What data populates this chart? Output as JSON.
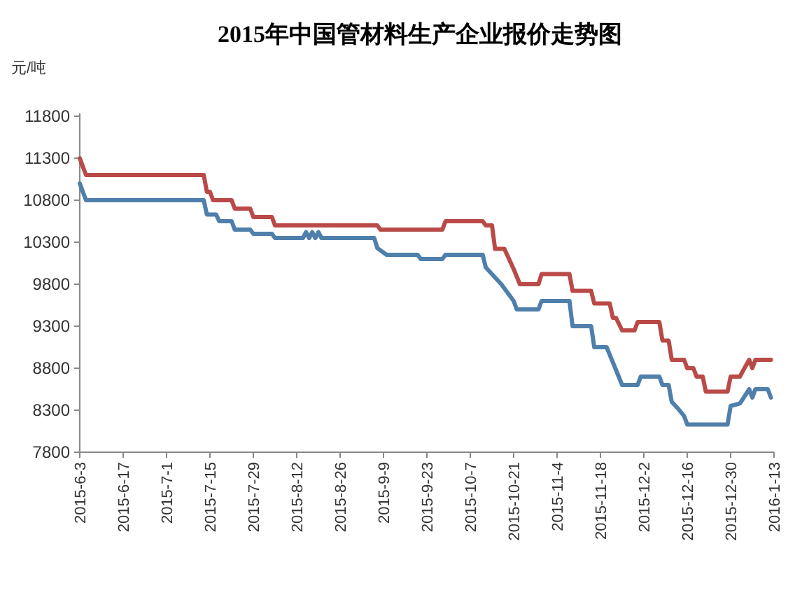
{
  "chart_data": {
    "type": "line",
    "title": "2015年中国管材料生产企业报价走势图",
    "ylabel": "元/吨",
    "xlim": [
      "2015-06-03",
      "2016-01-13"
    ],
    "xticks": [
      {
        "value": "2015-06-03",
        "label": "2015-6-3"
      },
      {
        "value": "2015-06-17",
        "label": "2015-6-17"
      },
      {
        "value": "2015-07-01",
        "label": "2015-7-1"
      },
      {
        "value": "2015-07-15",
        "label": "2015-7-15"
      },
      {
        "value": "2015-07-29",
        "label": "2015-7-29"
      },
      {
        "value": "2015-08-12",
        "label": "2015-8-12"
      },
      {
        "value": "2015-08-26",
        "label": "2015-8-26"
      },
      {
        "value": "2015-09-09",
        "label": "2015-9-9"
      },
      {
        "value": "2015-09-23",
        "label": "2015-9-23"
      },
      {
        "value": "2015-10-07",
        "label": "2015-10-7"
      },
      {
        "value": "2015-10-21",
        "label": "2015-10-21"
      },
      {
        "value": "2015-11-04",
        "label": "2015-11-4"
      },
      {
        "value": "2015-11-18",
        "label": "2015-11-18"
      },
      {
        "value": "2015-12-02",
        "label": "2015-12-2"
      },
      {
        "value": "2015-12-16",
        "label": "2015-12-16"
      },
      {
        "value": "2015-12-30",
        "label": "2015-12-30"
      },
      {
        "value": "2016-01-13",
        "label": "2016-1-13"
      }
    ],
    "ylim": [
      7800,
      11800
    ],
    "yticks": [
      7800,
      8300,
      8800,
      9300,
      9800,
      10300,
      10800,
      11300,
      11800
    ],
    "series": [
      {
        "color": "#4f7fab",
        "x": [
          "2015-06-03",
          "2015-06-05",
          "2015-07-13",
          "2015-07-14",
          "2015-07-17",
          "2015-07-18",
          "2015-07-22",
          "2015-07-23",
          "2015-07-28",
          "2015-07-29",
          "2015-08-04",
          "2015-08-05",
          "2015-08-14",
          "2015-08-15",
          "2015-08-16",
          "2015-08-17",
          "2015-08-18",
          "2015-08-19",
          "2015-08-20",
          "2015-09-06",
          "2015-09-07",
          "2015-09-10",
          "2015-09-20",
          "2015-09-21",
          "2015-09-28",
          "2015-09-29",
          "2015-10-11",
          "2015-10-12",
          "2015-10-17",
          "2015-10-21",
          "2015-10-22",
          "2015-10-29",
          "2015-10-30",
          "2015-11-08",
          "2015-11-09",
          "2015-11-15",
          "2015-11-16",
          "2015-11-20",
          "2015-11-25",
          "2015-11-30",
          "2015-12-01",
          "2015-12-07",
          "2015-12-08",
          "2015-12-10",
          "2015-12-11",
          "2015-12-13",
          "2015-12-15",
          "2015-12-16",
          "2015-12-29",
          "2015-12-30",
          "2016-01-02",
          "2016-01-05",
          "2016-01-06",
          "2016-01-07",
          "2016-01-11",
          "2016-01-12"
        ],
        "values": [
          11000,
          10800,
          10800,
          10630,
          10630,
          10550,
          10550,
          10450,
          10450,
          10400,
          10400,
          10350,
          10350,
          10420,
          10350,
          10420,
          10350,
          10420,
          10350,
          10350,
          10230,
          10150,
          10150,
          10100,
          10100,
          10150,
          10150,
          10000,
          9800,
          9600,
          9500,
          9500,
          9600,
          9600,
          9300,
          9300,
          9050,
          9050,
          8600,
          8600,
          8700,
          8700,
          8600,
          8600,
          8400,
          8320,
          8230,
          8130,
          8130,
          8350,
          8380,
          8550,
          8450,
          8550,
          8550,
          8450
        ]
      },
      {
        "color": "#b94a48",
        "x": [
          "2015-06-03",
          "2015-06-05",
          "2015-07-13",
          "2015-07-14",
          "2015-07-15",
          "2015-07-16",
          "2015-07-22",
          "2015-07-23",
          "2015-07-28",
          "2015-07-29",
          "2015-08-04",
          "2015-08-05",
          "2015-09-07",
          "2015-09-08",
          "2015-09-28",
          "2015-09-29",
          "2015-10-11",
          "2015-10-12",
          "2015-10-14",
          "2015-10-15",
          "2015-10-18",
          "2015-10-21",
          "2015-10-23",
          "2015-10-29",
          "2015-10-30",
          "2015-11-08",
          "2015-11-09",
          "2015-11-15",
          "2015-11-16",
          "2015-11-21",
          "2015-11-22",
          "2015-11-23",
          "2015-11-25",
          "2015-11-29",
          "2015-11-30",
          "2015-12-07",
          "2015-12-08",
          "2015-12-10",
          "2015-12-11",
          "2015-12-15",
          "2015-12-16",
          "2015-12-18",
          "2015-12-19",
          "2015-12-21",
          "2015-12-22",
          "2015-12-29",
          "2015-12-30",
          "2016-01-02",
          "2016-01-03",
          "2016-01-05",
          "2016-01-06",
          "2016-01-07",
          "2016-01-12"
        ],
        "values": [
          11300,
          11100,
          11100,
          10900,
          10900,
          10800,
          10800,
          10700,
          10700,
          10600,
          10600,
          10500,
          10500,
          10450,
          10450,
          10550,
          10550,
          10500,
          10500,
          10220,
          10220,
          9980,
          9800,
          9800,
          9920,
          9920,
          9720,
          9720,
          9570,
          9570,
          9400,
          9400,
          9250,
          9250,
          9350,
          9350,
          9130,
          9130,
          8900,
          8900,
          8800,
          8800,
          8700,
          8700,
          8520,
          8520,
          8700,
          8700,
          8770,
          8900,
          8800,
          8900,
          8900
        ]
      }
    ]
  }
}
